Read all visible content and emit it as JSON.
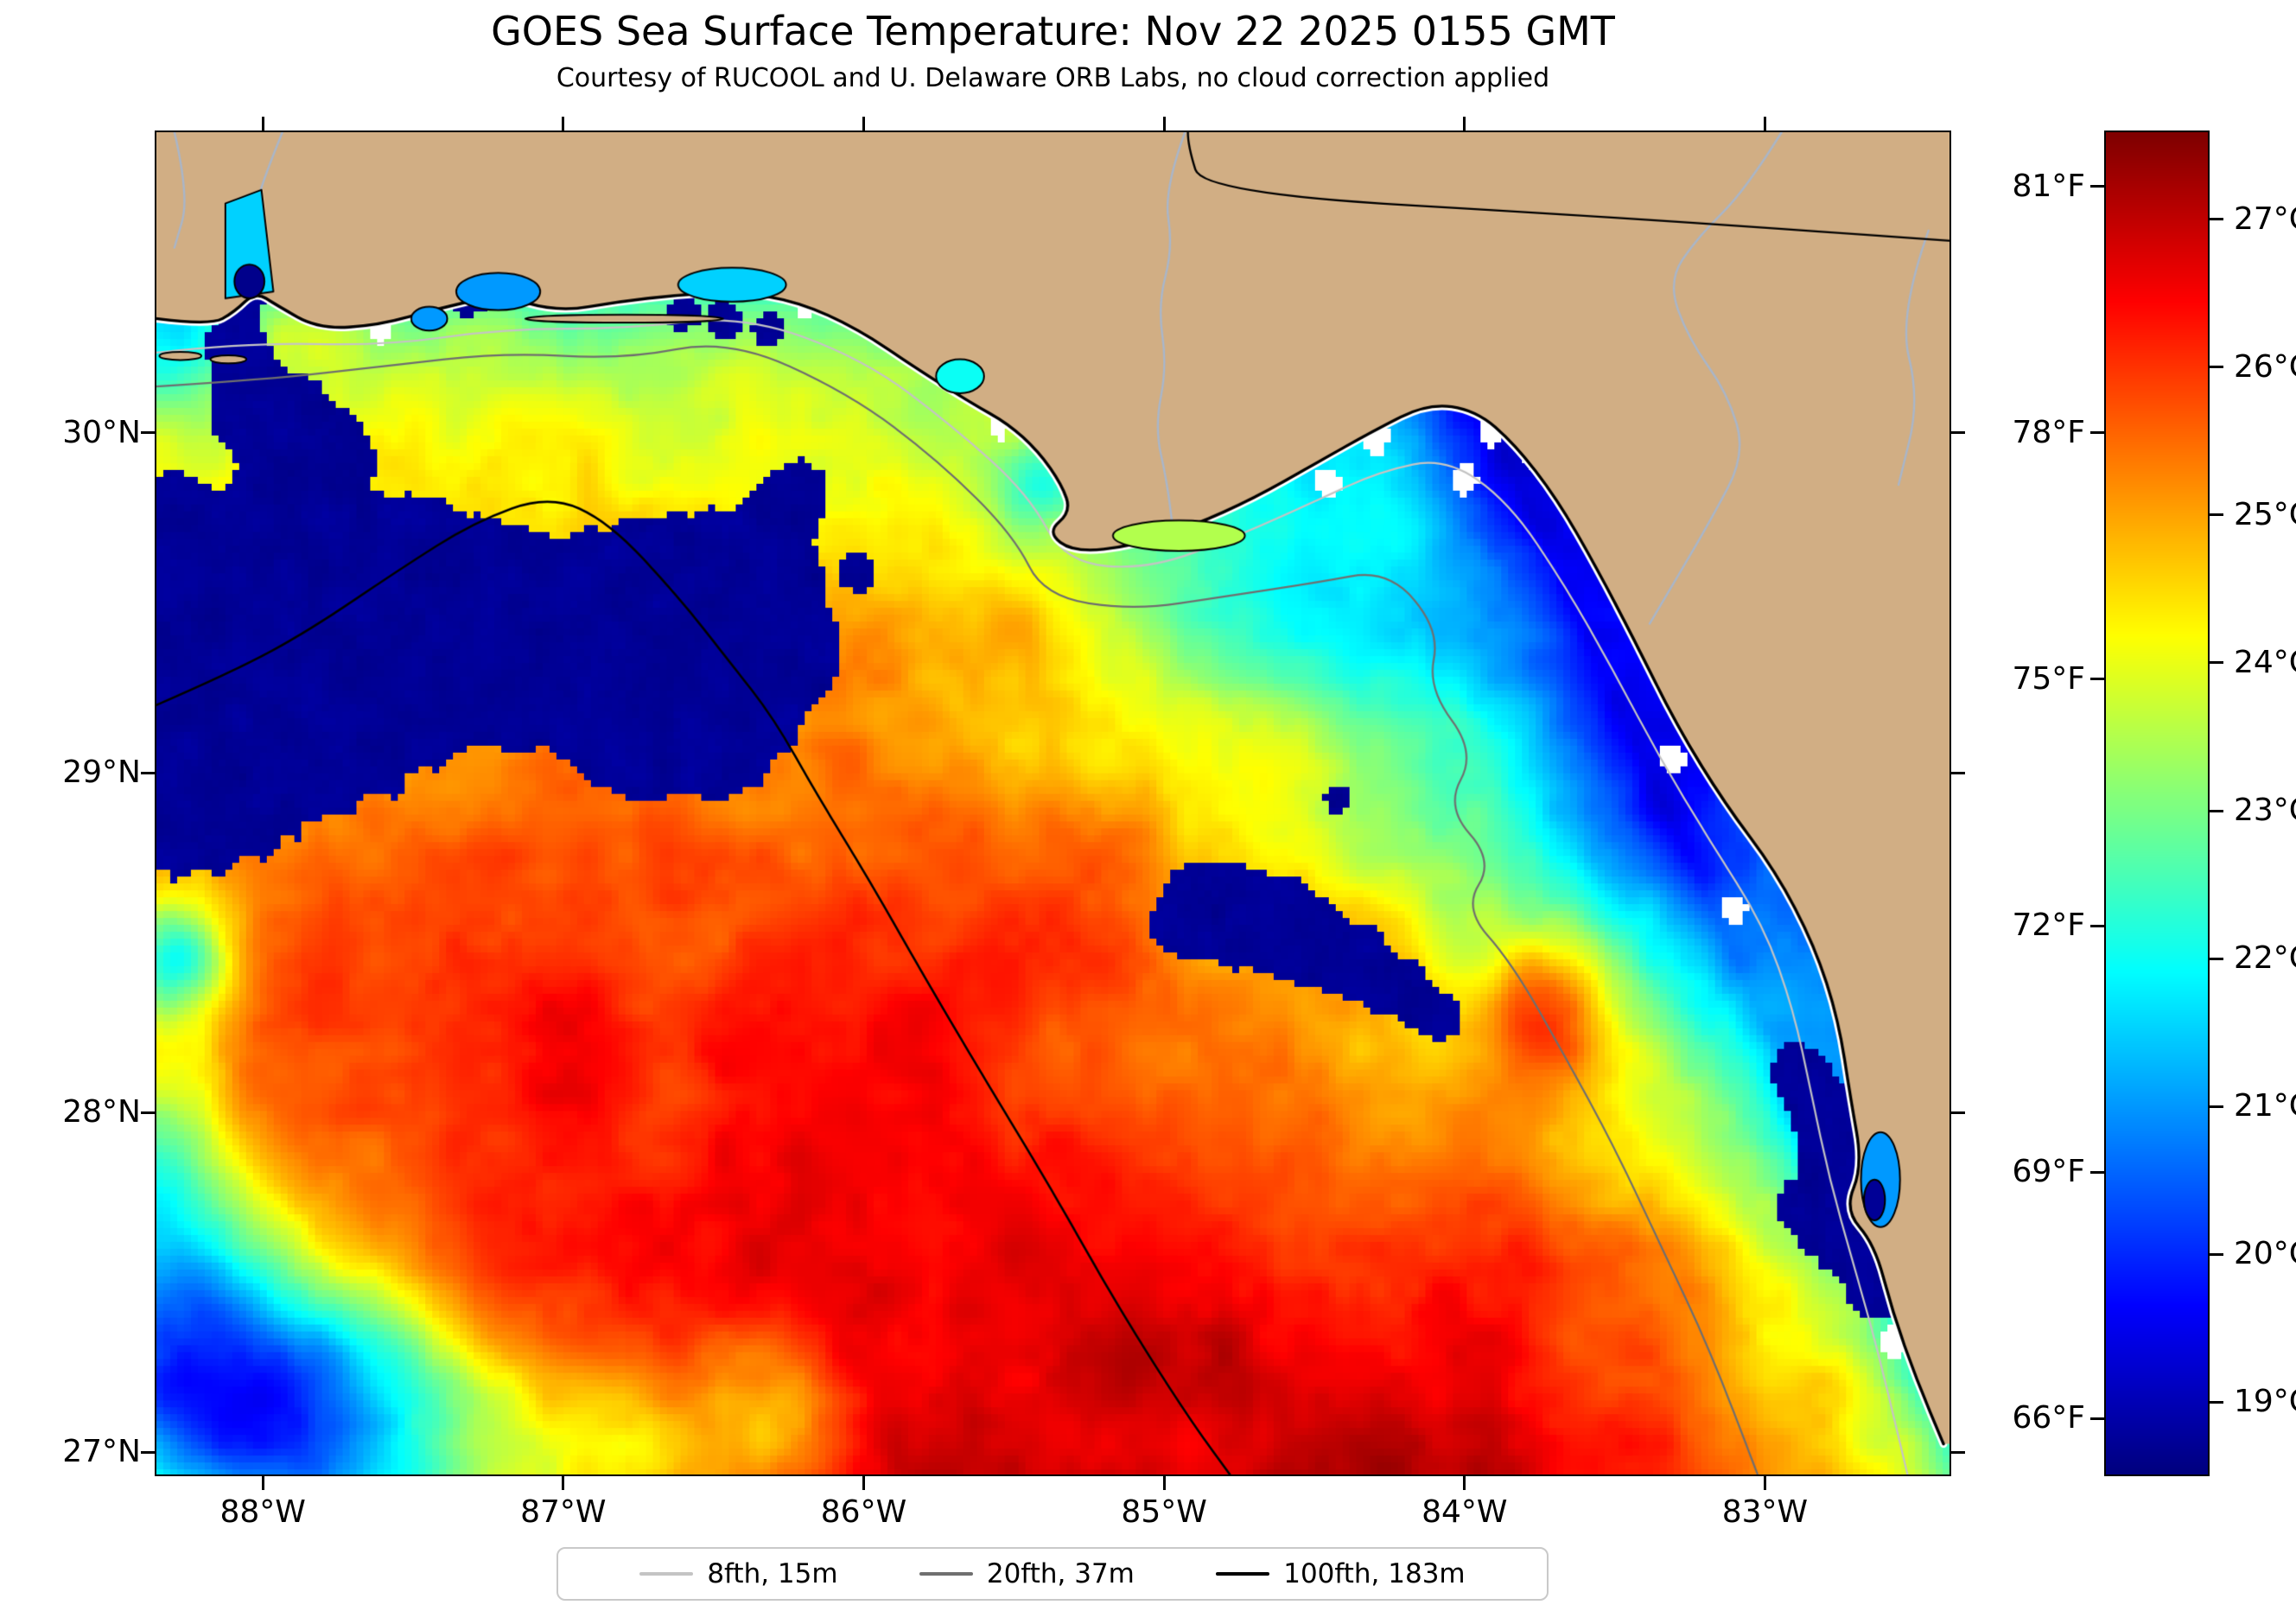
{
  "figure": {
    "title": "GOES Sea Surface Temperature: Nov 22 2025 0155 GMT",
    "subtitle": "Courtesy of RUCOOL and U. Delaware ORB Labs, no cloud correction applied"
  },
  "axes": {
    "x_tick_labels": [
      "88°W",
      "87°W",
      "86°W",
      "85°W",
      "84°W",
      "83°W"
    ],
    "x_tick_values_deg_w": [
      88,
      87,
      86,
      85,
      84,
      83
    ],
    "y_tick_labels": [
      "30°N",
      "29°N",
      "28°N",
      "27°N"
    ],
    "y_tick_values_deg_n": [
      30,
      29,
      28,
      27
    ]
  },
  "colorbar": {
    "fahrenheit_tick_labels": [
      "81°F",
      "78°F",
      "75°F",
      "72°F",
      "69°F",
      "66°F"
    ],
    "fahrenheit_tick_values": [
      81,
      78,
      75,
      72,
      69,
      66
    ],
    "celsius_tick_labels": [
      "27°C",
      "26°C",
      "25°C",
      "24°C",
      "23°C",
      "22°C",
      "21°C",
      "20°C",
      "19°C"
    ],
    "celsius_tick_values": [
      27,
      26,
      25,
      24,
      23,
      22,
      21,
      20,
      19
    ]
  },
  "legend": {
    "items": [
      {
        "label": "8fth, 15m",
        "color": "#c4c4c4"
      },
      {
        "label": "20fth, 37m",
        "color": "#6f6f6f"
      },
      {
        "label": "100fth, 183m",
        "color": "#000000"
      }
    ]
  },
  "colors": {
    "land": "#d1ae84",
    "river": "#a9b6c9",
    "frame": "#000000",
    "no_data": "#ffffff",
    "cloud_mask_navy": "#000082"
  },
  "chart_data": {
    "type": "heatmap",
    "title": "GOES Sea Surface Temperature: Nov 22 2025 0155 GMT",
    "subtitle": "Courtesy of RUCOOL and U. Delaware ORB Labs, no cloud correction applied",
    "x_axis": {
      "ticks": [
        "88°W",
        "87°W",
        "86°W",
        "85°W",
        "84°W",
        "83°W"
      ],
      "range_deg_w": [
        88.36,
        82.38
      ]
    },
    "y_axis": {
      "ticks": [
        "30°N",
        "29°N",
        "28°N",
        "27°N"
      ],
      "range_deg_n": [
        26.93,
        30.89
      ]
    },
    "colorbar": {
      "units": [
        "°F",
        "°C"
      ],
      "colormap": "jet",
      "range_c": [
        18.5,
        27.6
      ],
      "f_ticks": [
        81,
        78,
        75,
        72,
        69,
        66
      ],
      "c_ticks": [
        27,
        26,
        25,
        24,
        23,
        22,
        21,
        20,
        19
      ]
    },
    "legend_contours": [
      {
        "label": "8fth, 15m",
        "depth_m": 15,
        "color": "#c4c4c4"
      },
      {
        "label": "20fth, 37m",
        "depth_m": 37,
        "color": "#6f6f6f"
      },
      {
        "label": "100fth, 183m",
        "depth_m": 183,
        "color": "#000000"
      }
    ],
    "sst_estimates_c": {
      "note": "Coarse SST readings estimated from the map colors; null = land; values near 18.6 are cloud-masked (dark navy) pixels",
      "lons_deg_w": [
        88.25,
        87.75,
        87.25,
        86.75,
        86.25,
        85.75,
        85.25,
        84.75,
        84.25,
        83.75,
        83.25,
        82.75
      ],
      "lats_deg_n": [
        30.5,
        30.0,
        29.5,
        29.0,
        28.5,
        28.0,
        27.5,
        27.0
      ],
      "grid": [
        [
          22.0,
          null,
          null,
          null,
          null,
          null,
          null,
          null,
          null,
          null,
          null,
          null
        ],
        [
          23.5,
          19.0,
          24.0,
          24.0,
          23.0,
          null,
          null,
          null,
          20.5,
          20.5,
          null,
          null
        ],
        [
          19.0,
          19.0,
          24.0,
          19.0,
          24.5,
          24.5,
          22.5,
          22.0,
          21.5,
          21.5,
          20.5,
          null
        ],
        [
          19.0,
          25.0,
          25.5,
          24.5,
          25.5,
          25.5,
          25.0,
          24.0,
          23.0,
          22.5,
          21.0,
          null
        ],
        [
          25.5,
          26.0,
          26.0,
          25.8,
          25.8,
          25.5,
          25.5,
          19.0,
          23.0,
          23.0,
          21.5,
          20.0
        ],
        [
          25.8,
          26.2,
          26.2,
          26.0,
          26.0,
          26.0,
          25.8,
          25.5,
          25.0,
          24.0,
          22.0,
          19.5
        ],
        [
          22.0,
          26.3,
          26.3,
          26.3,
          26.2,
          26.2,
          26.0,
          26.0,
          25.5,
          25.0,
          24.0,
          21.5
        ],
        [
          21.5,
          22.5,
          26.5,
          26.5,
          26.5,
          26.4,
          26.3,
          26.2,
          26.0,
          25.8,
          25.0,
          null
        ]
      ]
    }
  }
}
